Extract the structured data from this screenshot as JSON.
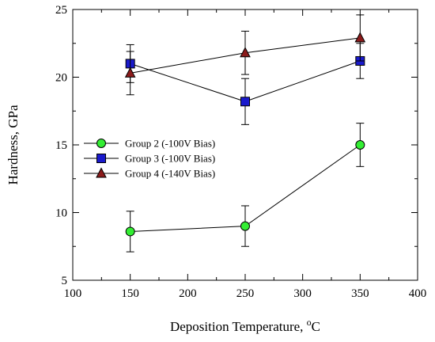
{
  "chart_data": {
    "type": "scatter",
    "xlabel": "Deposition Temperature, ",
    "xlabel_sup": "o",
    "xlabel_unit": "C",
    "ylabel": "Hardness, GPa",
    "xlim": [
      100,
      400
    ],
    "ylim": [
      5,
      25
    ],
    "x_major_ticks": [
      100,
      150,
      200,
      250,
      300,
      350,
      400
    ],
    "x_minor_ticks": [
      125,
      175,
      225,
      275,
      325,
      375
    ],
    "y_major_ticks": [
      5,
      10,
      15,
      20,
      25
    ],
    "y_minor_ticks": [
      7.5,
      12.5,
      17.5,
      22.5
    ],
    "grid": false,
    "legend_position": "center-left",
    "x": [
      150,
      250,
      350
    ],
    "series": [
      {
        "name": "Group 2 (-100V Bias)",
        "marker": "circle",
        "color": "#33ee33",
        "values": [
          8.6,
          9.0,
          15.0
        ],
        "errors": [
          1.5,
          1.5,
          1.6
        ]
      },
      {
        "name": "Group 3 (-100V Bias)",
        "marker": "square",
        "color": "#1a1acc",
        "values": [
          21.0,
          18.2,
          21.2
        ],
        "errors": [
          1.4,
          1.7,
          1.3
        ]
      },
      {
        "name": "Group 4 (-140V Bias)",
        "marker": "triangle",
        "color": "#8b1a1a",
        "values": [
          20.3,
          21.8,
          22.9
        ],
        "errors": [
          1.6,
          1.6,
          1.7
        ]
      }
    ]
  }
}
